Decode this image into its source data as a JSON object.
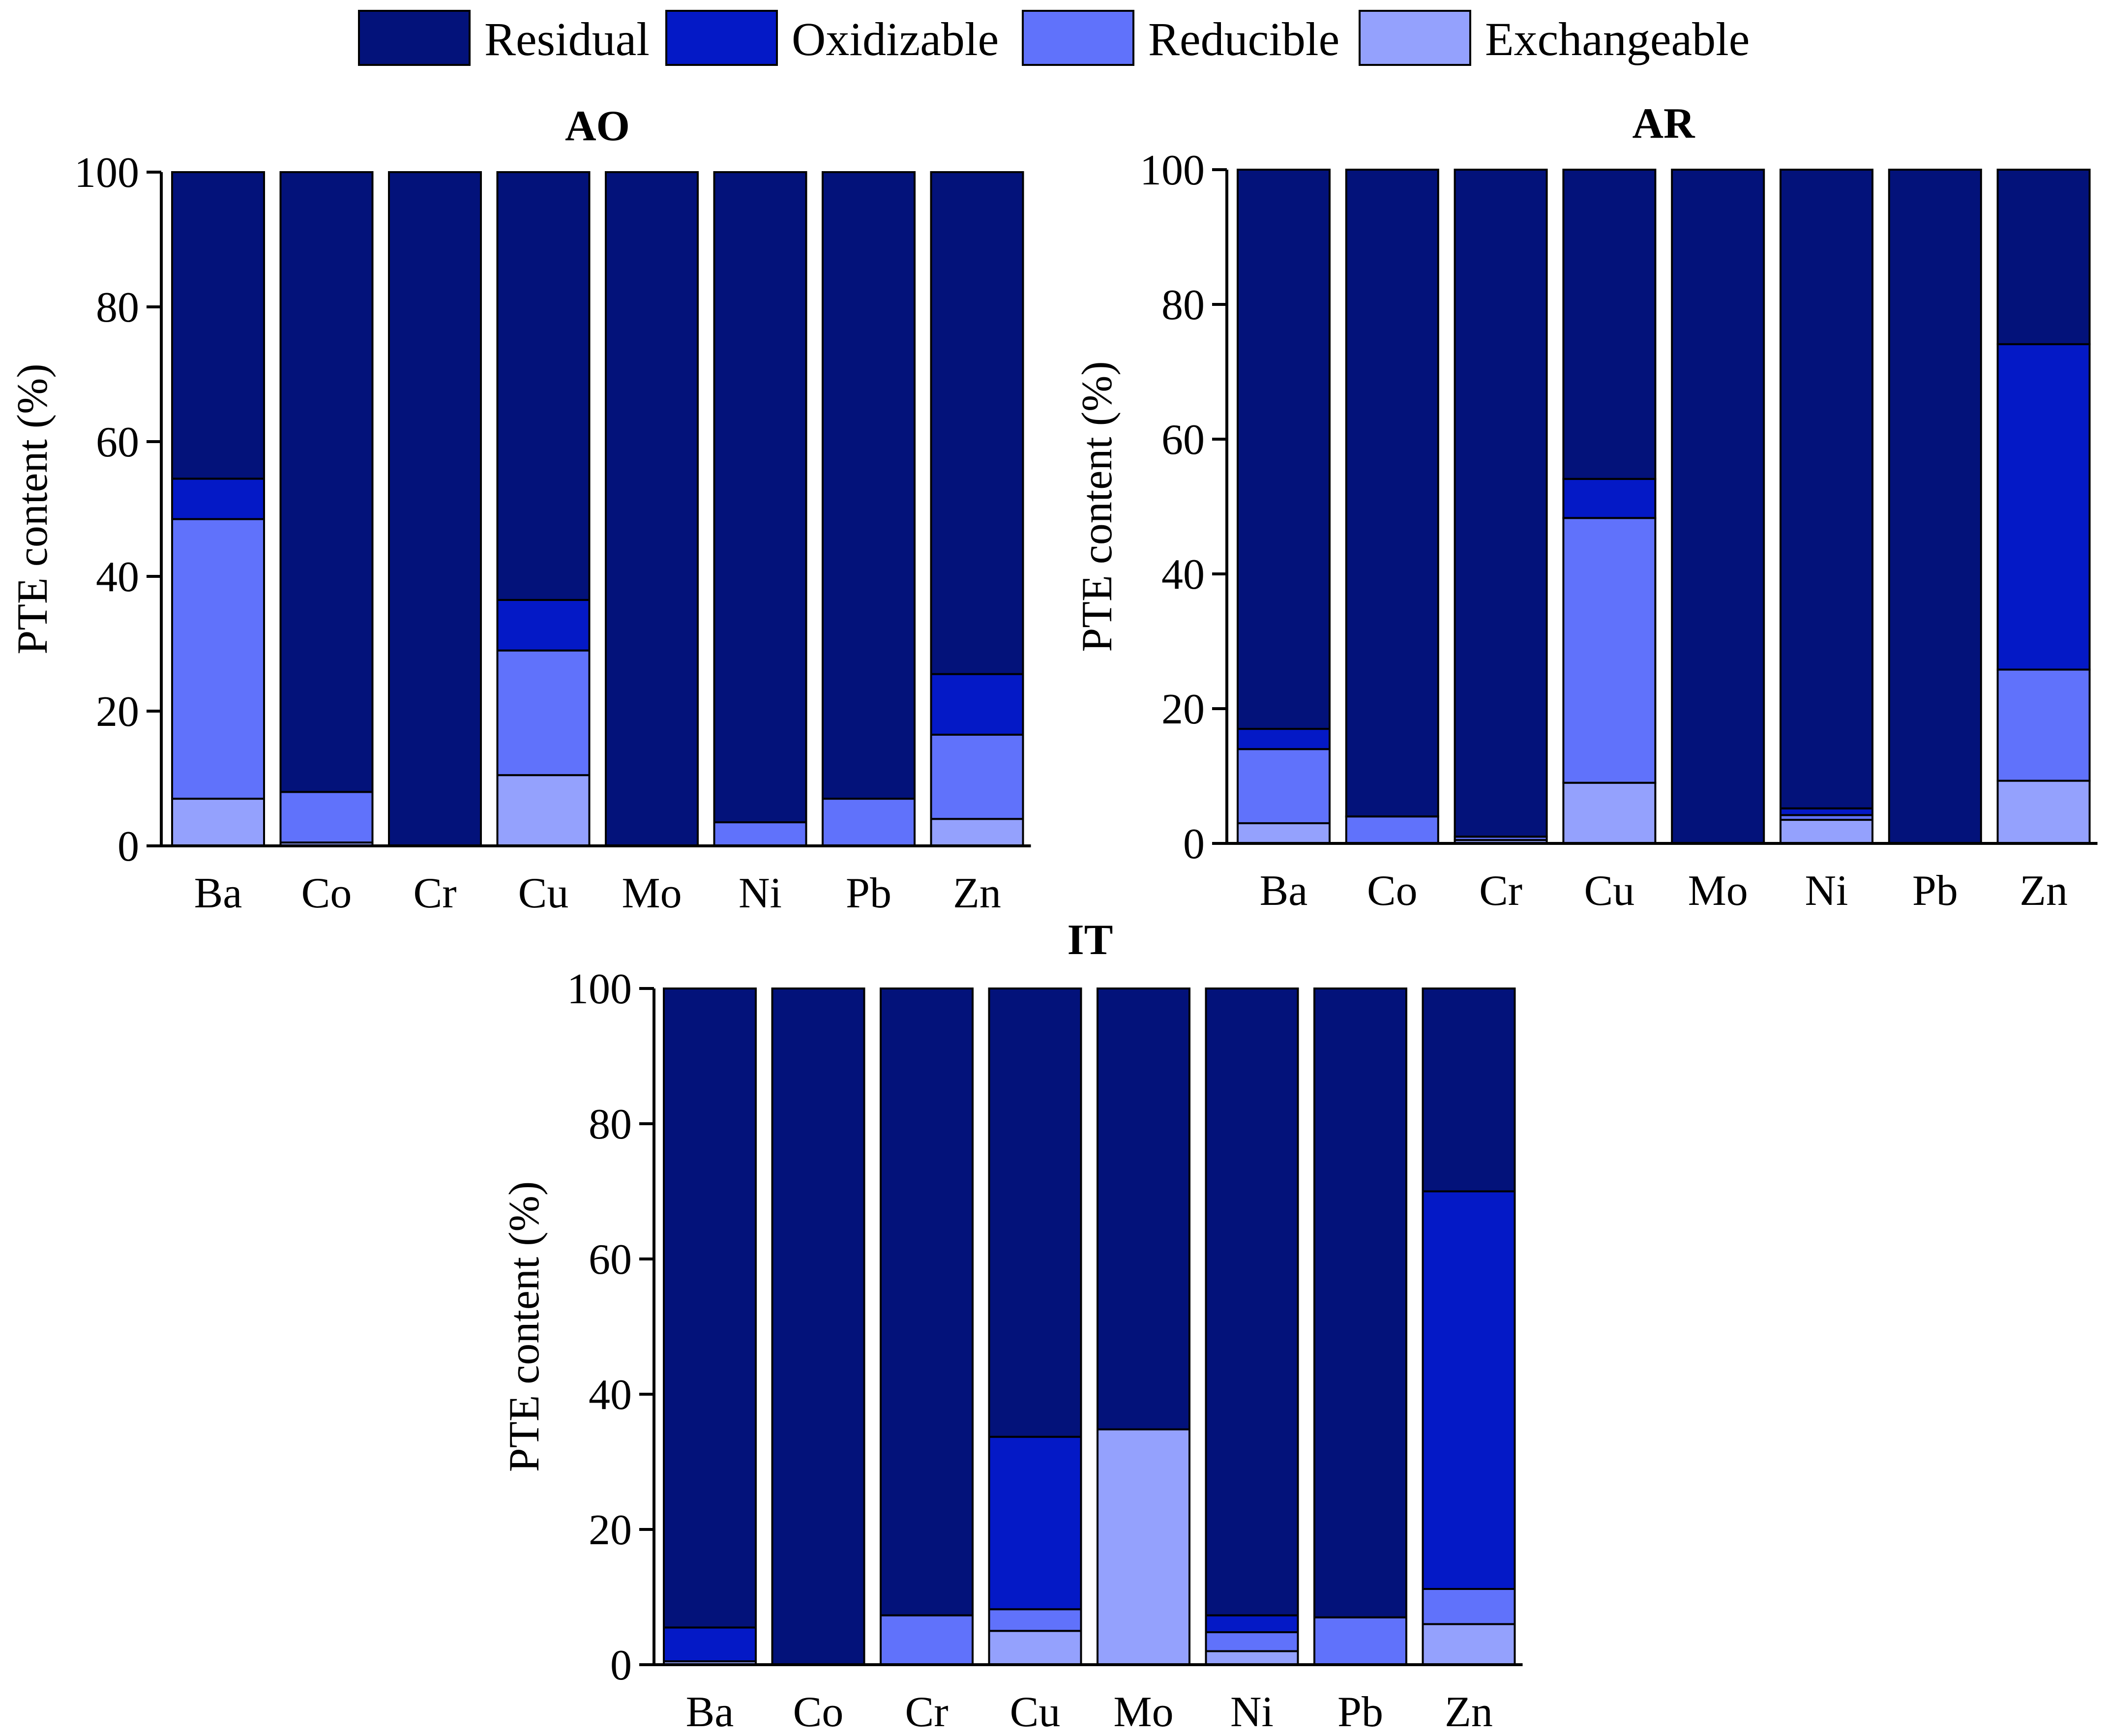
{
  "chart_data": {
    "type": "bar",
    "stacked": true,
    "legend": {
      "placement": "top-center",
      "entries": [
        {
          "name": "Residual",
          "color": "#03127a"
        },
        {
          "name": "Oxidizable",
          "color": "#0419c6"
        },
        {
          "name": "Reducible",
          "color": "#6072fb"
        },
        {
          "name": "Exchangeable",
          "color": "#94a1fd"
        }
      ]
    },
    "panels": [
      {
        "title": "AO",
        "ylabel": "PTE content (%)",
        "ylim": [
          0,
          100
        ],
        "yticks": [
          0,
          20,
          40,
          60,
          80,
          100
        ],
        "categories": [
          "Ba",
          "Co",
          "Cr",
          "Cu",
          "Mo",
          "Ni",
          "Pb",
          "Zn"
        ],
        "series": [
          {
            "name": "Exchangeable",
            "values": [
              7,
              0.5,
              0,
              10.5,
              0,
              0,
              0,
              4
            ]
          },
          {
            "name": "Reducible",
            "values": [
              41.5,
              7.5,
              0,
              18.5,
              0,
              3.5,
              7,
              12.5
            ]
          },
          {
            "name": "Oxidizable",
            "values": [
              6,
              0,
              0,
              7.5,
              0,
              0,
              0,
              9
            ]
          },
          {
            "name": "Residual",
            "values": [
              45.5,
              92,
              100,
              63.5,
              100,
              96.5,
              93,
              74.5
            ]
          }
        ]
      },
      {
        "title": "AR",
        "ylabel": "PTE content (%)",
        "ylim": [
          0,
          100
        ],
        "yticks": [
          0,
          20,
          40,
          60,
          80,
          100
        ],
        "categories": [
          "Ba",
          "Co",
          "Cr",
          "Cu",
          "Mo",
          "Ni",
          "Pb",
          "Zn"
        ],
        "series": [
          {
            "name": "Exchangeable",
            "values": [
              3,
              0,
              0.5,
              9,
              0,
              3.5,
              0,
              9.3
            ]
          },
          {
            "name": "Reducible",
            "values": [
              11,
              4,
              0.5,
              39.3,
              0,
              0.7,
              0,
              16.5
            ]
          },
          {
            "name": "Oxidizable",
            "values": [
              3,
              0,
              0,
              5.8,
              0,
              1,
              0,
              48.3
            ]
          },
          {
            "name": "Residual",
            "values": [
              83,
              96,
              99,
              45.9,
              100,
              94.8,
              100,
              25.9
            ]
          }
        ]
      },
      {
        "title": "IT",
        "ylabel": "PTE content (%)",
        "ylim": [
          0,
          100
        ],
        "yticks": [
          0,
          20,
          40,
          60,
          80,
          100
        ],
        "categories": [
          "Ba",
          "Co",
          "Cr",
          "Cu",
          "Mo",
          "Ni",
          "Pb",
          "Zn"
        ],
        "series": [
          {
            "name": "Exchangeable",
            "values": [
              0.5,
              0,
              0,
              5,
              34.8,
              2,
              0,
              6
            ]
          },
          {
            "name": "Reducible",
            "values": [
              0,
              0,
              7.3,
              3.2,
              0,
              2.8,
              7,
              5.2
            ]
          },
          {
            "name": "Oxidizable",
            "values": [
              5,
              0,
              0,
              25.5,
              0,
              2.5,
              0,
              58.8
            ]
          },
          {
            "name": "Residual",
            "values": [
              94.5,
              100,
              92.7,
              66.3,
              65.2,
              92.7,
              93,
              30
            ]
          }
        ]
      }
    ]
  }
}
